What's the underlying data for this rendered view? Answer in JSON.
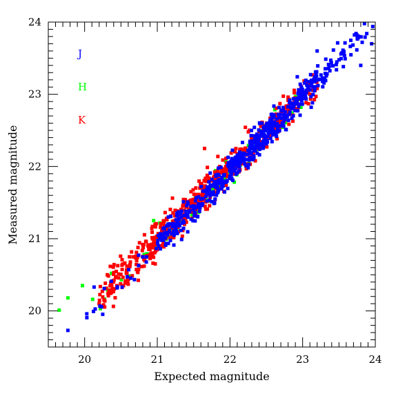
{
  "chart_data": {
    "type": "scatter",
    "title": "",
    "xlabel": "Expected magnitude",
    "ylabel": "Measured magnitude",
    "xlim": [
      19.5,
      24
    ],
    "ylim": [
      19.5,
      24
    ],
    "x_ticks": [
      "20",
      "21",
      "22",
      "23",
      "24"
    ],
    "y_ticks": [
      "20",
      "21",
      "22",
      "23",
      "24"
    ],
    "grid": false,
    "legend_position": "top-left",
    "series": [
      {
        "name": "J",
        "color": "#0000ff",
        "trend": {
          "slope": 1.03,
          "intercept": -0.72,
          "scatter": 0.1
        },
        "segments": [
          {
            "x_range": [
              20.0,
              21.0
            ],
            "count": 20
          },
          {
            "x_range": [
              21.0,
              21.8
            ],
            "count": 150
          },
          {
            "x_range": [
              21.8,
              22.6
            ],
            "count": 260
          },
          {
            "x_range": [
              22.6,
              23.2
            ],
            "count": 130
          },
          {
            "x_range": [
              23.2,
              24.0
            ],
            "count": 60
          }
        ],
        "extra_points": [
          {
            "x": 19.77,
            "y": 19.73
          },
          {
            "x": 20.03,
            "y": 19.96
          },
          {
            "x": 20.13,
            "y": 20.33
          },
          {
            "x": 20.27,
            "y": 20.31
          },
          {
            "x": 23.2,
            "y": 23.6
          },
          {
            "x": 23.82,
            "y": 23.72
          },
          {
            "x": 23.95,
            "y": 23.7
          },
          {
            "x": 23.8,
            "y": 23.4
          }
        ]
      },
      {
        "name": "H",
        "color": "#00ff00",
        "trend": {
          "slope": 1.0,
          "intercept": -0.06,
          "scatter": 0.1
        },
        "segments": [
          {
            "x_range": [
              20.2,
              21.0
            ],
            "count": 10
          },
          {
            "x_range": [
              21.0,
              22.0
            ],
            "count": 50
          },
          {
            "x_range": [
              22.0,
              23.0
            ],
            "count": 40
          }
        ],
        "extra_points": [
          {
            "x": 19.65,
            "y": 20.01
          },
          {
            "x": 19.77,
            "y": 20.18
          },
          {
            "x": 19.97,
            "y": 20.35
          },
          {
            "x": 20.11,
            "y": 20.16
          },
          {
            "x": 20.37,
            "y": 20.52
          },
          {
            "x": 20.95,
            "y": 21.25
          }
        ]
      },
      {
        "name": "K",
        "color": "#ff0000",
        "trend": {
          "slope": 1.0,
          "intercept": -0.02,
          "scatter": 0.12
        },
        "segments": [
          {
            "x_range": [
              20.2,
              20.9
            ],
            "count": 110
          },
          {
            "x_range": [
              20.9,
              21.9
            ],
            "count": 260
          },
          {
            "x_range": [
              21.9,
              22.9
            ],
            "count": 180
          },
          {
            "x_range": [
              22.9,
              23.2
            ],
            "count": 30
          }
        ],
        "extra_points": [
          {
            "x": 20.2,
            "y": 20.1
          },
          {
            "x": 20.6,
            "y": 20.37
          },
          {
            "x": 20.82,
            "y": 20.62
          },
          {
            "x": 21.65,
            "y": 22.25
          },
          {
            "x": 22.9,
            "y": 22.8
          },
          {
            "x": 23.1,
            "y": 23.0
          }
        ]
      }
    ]
  }
}
